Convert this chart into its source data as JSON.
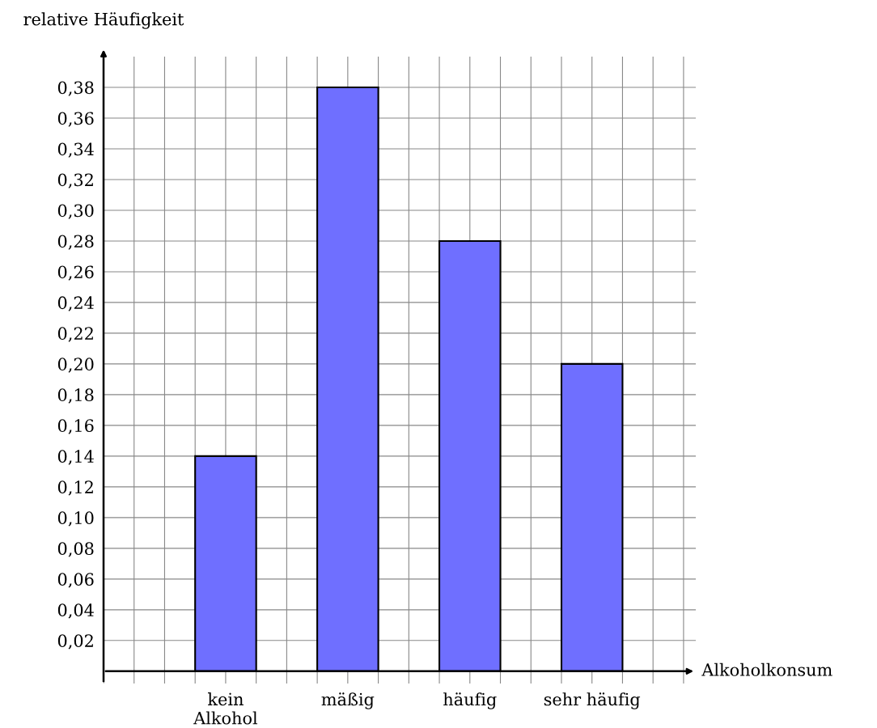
{
  "chart_data": {
    "type": "bar",
    "xlabel": "Alkoholkonsum",
    "ylabel": "relative Häufigkeit",
    "categories": [
      "kein\nAlkohol",
      "mäßig",
      "häufig",
      "sehr häufig"
    ],
    "values": [
      0.14,
      0.38,
      0.28,
      0.2
    ],
    "color": "#6f6fff",
    "ylim": [
      -0.008,
      0.4
    ],
    "yticks": [
      {
        "value": 0.02,
        "label": "0,02"
      },
      {
        "value": 0.04,
        "label": "0,04"
      },
      {
        "value": 0.06,
        "label": "0,06"
      },
      {
        "value": 0.08,
        "label": "0,08"
      },
      {
        "value": 0.1,
        "label": "0,10"
      },
      {
        "value": 0.12,
        "label": "0,12"
      },
      {
        "value": 0.14,
        "label": "0,14"
      },
      {
        "value": 0.16,
        "label": "0,16"
      },
      {
        "value": 0.18,
        "label": "0,18"
      },
      {
        "value": 0.2,
        "label": "0,20"
      },
      {
        "value": 0.22,
        "label": "0,22"
      },
      {
        "value": 0.24,
        "label": "0,24"
      },
      {
        "value": 0.26,
        "label": "0,26"
      },
      {
        "value": 0.28,
        "label": "0,28"
      },
      {
        "value": 0.3,
        "label": "0,30"
      },
      {
        "value": 0.32,
        "label": "0,32"
      },
      {
        "value": 0.34,
        "label": "0,34"
      },
      {
        "value": 0.36,
        "label": "0,36"
      },
      {
        "value": 0.38,
        "label": "0,38"
      }
    ],
    "grid": true
  }
}
